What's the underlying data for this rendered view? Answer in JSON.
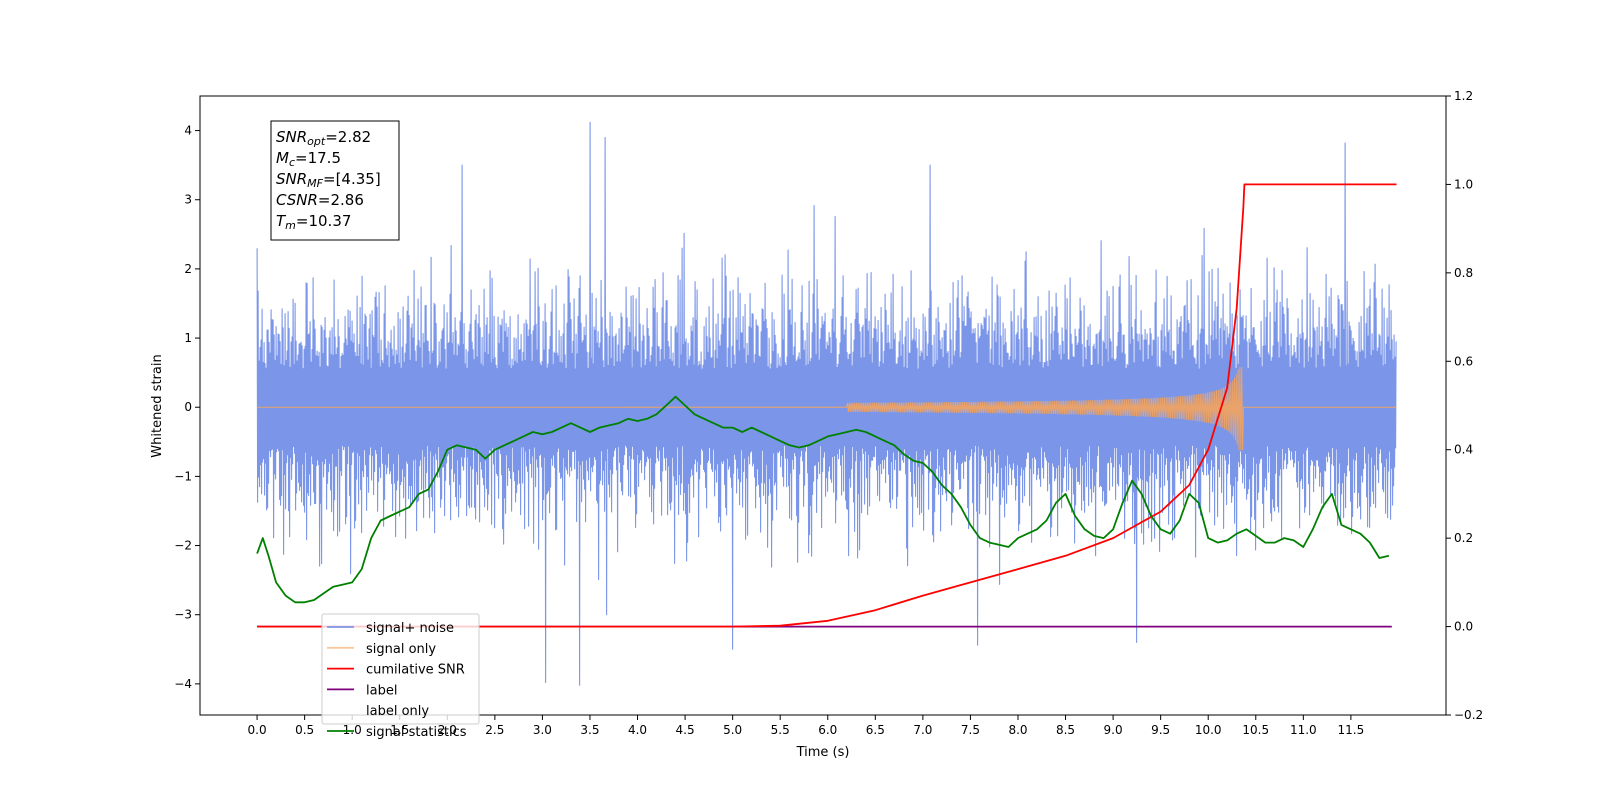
{
  "chart_data": {
    "type": "line",
    "title": "",
    "xlabel": "Time (s)",
    "ylabel": "Whitened strain",
    "y2label": "",
    "xlim": [
      -0.6,
      12.5
    ],
    "ylim": [
      -4.45,
      4.5
    ],
    "y2lim": [
      -0.2,
      1.2
    ],
    "grid": false,
    "legend_position": "lower-left",
    "x_ticks": [
      0.0,
      0.5,
      1.0,
      1.5,
      2.0,
      2.5,
      3.0,
      3.5,
      4.0,
      4.5,
      5.0,
      5.5,
      6.0,
      6.5,
      7.0,
      7.5,
      8.0,
      8.5,
      9.0,
      9.5,
      10.0,
      10.5,
      11.0,
      11.5
    ],
    "x_tick_labels": [
      "0.0",
      "0.5",
      "1.0",
      "1.5",
      "2.0",
      "2.5",
      "3.0",
      "3.5",
      "4.0",
      "4.5",
      "5.0",
      "5.5",
      "6.0",
      "6.5",
      "7.0",
      "7.5",
      "8.0",
      "8.5",
      "9.0",
      "9.5",
      "10.0",
      "10.5",
      "11.0",
      "11.5"
    ],
    "y_ticks": [
      4,
      3,
      2,
      1,
      0,
      -1,
      -2,
      -3,
      -4
    ],
    "y_tick_labels": [
      "4",
      "3",
      "2",
      "1",
      "0",
      "−1",
      "−2",
      "−3",
      "−4"
    ],
    "y2_ticks": [
      1.2,
      1.0,
      0.8,
      0.6,
      0.4,
      0.2,
      0.0,
      -0.2
    ],
    "y2_tick_labels": [
      "1.2",
      "1.0",
      "0.8",
      "0.6",
      "0.4",
      "0.2",
      "0.0",
      "−0.2"
    ],
    "stats_box": [
      {
        "base": "SNR",
        "sub": "opt",
        "value": "=2.82"
      },
      {
        "base": "M",
        "sub": "c",
        "value": "=17.5"
      },
      {
        "base": "SNR",
        "sub": "MF",
        "value": "=[4.35]"
      },
      {
        "base": "CSNR",
        "sub": "",
        "value": "=2.86"
      },
      {
        "base": "T",
        "sub": "m",
        "value": "=10.37"
      }
    ],
    "series": [
      {
        "name": "signal+ noise",
        "axis": "left",
        "color": "#7b96e8",
        "render": "noise-band",
        "x_range": [
          0.0,
          11.98
        ],
        "mean": 0.0,
        "typical_range": [
          -2.0,
          2.0
        ],
        "peak_values": [
          {
            "x": 3.5,
            "y": 4.12
          },
          {
            "x": 3.66,
            "y": 3.9
          },
          {
            "x": 11.44,
            "y": 3.82
          },
          {
            "x": 2.15,
            "y": 3.5
          },
          {
            "x": 7.08,
            "y": 3.5
          },
          {
            "x": 3.04,
            "y": -3.98
          },
          {
            "x": 3.4,
            "y": -4.02
          },
          {
            "x": 5.0,
            "y": -3.5
          },
          {
            "x": 7.58,
            "y": -3.44
          },
          {
            "x": 9.25,
            "y": -3.4
          },
          {
            "x": 0.0,
            "y": 2.3
          },
          {
            "x": 11.98,
            "y": 3.2
          }
        ]
      },
      {
        "name": "signal only",
        "axis": "left",
        "color": "#f5a35c",
        "render": "chirp",
        "x_range": [
          0.0,
          11.98
        ],
        "merger_time": 10.37,
        "peak_amplitude": [
          0.58,
          -0.62
        ]
      },
      {
        "name": "cumilative SNR",
        "axis": "right",
        "color": "#ff0000",
        "x": [
          0.0,
          5.0,
          5.5,
          6.0,
          6.5,
          7.0,
          7.5,
          8.0,
          8.5,
          9.0,
          9.5,
          9.8,
          10.0,
          10.2,
          10.3,
          10.37,
          10.38,
          11.98
        ],
        "values": [
          0.0,
          0.0,
          0.002,
          0.013,
          0.037,
          0.07,
          0.1,
          0.13,
          0.16,
          0.2,
          0.26,
          0.32,
          0.4,
          0.54,
          0.72,
          0.95,
          1.0,
          1.0
        ]
      },
      {
        "name": "label",
        "axis": "right",
        "color": "#800080",
        "x": [
          0.0,
          11.93
        ],
        "values": [
          0.0,
          0.0
        ]
      },
      {
        "name": "label only",
        "axis": "right",
        "color": "#cccccc",
        "x": [],
        "values": []
      },
      {
        "name": "signal statistics",
        "axis": "right",
        "color": "#008000",
        "x": [
          0.0,
          0.06,
          0.12,
          0.2,
          0.3,
          0.4,
          0.5,
          0.6,
          0.7,
          0.8,
          0.9,
          1.0,
          1.1,
          1.2,
          1.3,
          1.4,
          1.5,
          1.6,
          1.7,
          1.8,
          1.9,
          2.0,
          2.1,
          2.2,
          2.3,
          2.4,
          2.5,
          2.6,
          2.7,
          2.8,
          2.9,
          3.0,
          3.1,
          3.2,
          3.3,
          3.4,
          3.5,
          3.6,
          3.7,
          3.8,
          3.9,
          4.0,
          4.1,
          4.2,
          4.3,
          4.4,
          4.5,
          4.6,
          4.7,
          4.8,
          4.9,
          5.0,
          5.1,
          5.2,
          5.3,
          5.4,
          5.5,
          5.6,
          5.7,
          5.8,
          5.9,
          6.0,
          6.1,
          6.2,
          6.3,
          6.4,
          6.5,
          6.6,
          6.7,
          6.8,
          6.9,
          7.0,
          7.1,
          7.2,
          7.3,
          7.4,
          7.5,
          7.6,
          7.7,
          7.8,
          7.9,
          8.0,
          8.1,
          8.2,
          8.3,
          8.4,
          8.5,
          8.6,
          8.7,
          8.8,
          8.9,
          9.0,
          9.1,
          9.2,
          9.3,
          9.4,
          9.5,
          9.6,
          9.7,
          9.8,
          9.9,
          10.0,
          10.1,
          10.2,
          10.3,
          10.4,
          10.5,
          10.6,
          10.7,
          10.8,
          10.9,
          11.0,
          11.1,
          11.2,
          11.3,
          11.4,
          11.5,
          11.6,
          11.7,
          11.8,
          11.9
        ],
        "values": [
          0.165,
          0.2,
          0.16,
          0.1,
          0.07,
          0.055,
          0.055,
          0.06,
          0.075,
          0.09,
          0.095,
          0.1,
          0.13,
          0.2,
          0.24,
          0.25,
          0.26,
          0.27,
          0.3,
          0.31,
          0.35,
          0.4,
          0.41,
          0.405,
          0.4,
          0.38,
          0.4,
          0.41,
          0.42,
          0.43,
          0.44,
          0.435,
          0.44,
          0.45,
          0.46,
          0.45,
          0.44,
          0.45,
          0.455,
          0.46,
          0.47,
          0.465,
          0.47,
          0.48,
          0.5,
          0.52,
          0.5,
          0.48,
          0.47,
          0.46,
          0.45,
          0.45,
          0.44,
          0.45,
          0.44,
          0.43,
          0.42,
          0.41,
          0.405,
          0.41,
          0.42,
          0.43,
          0.435,
          0.44,
          0.445,
          0.44,
          0.43,
          0.42,
          0.41,
          0.39,
          0.375,
          0.37,
          0.35,
          0.32,
          0.3,
          0.27,
          0.23,
          0.2,
          0.19,
          0.185,
          0.18,
          0.2,
          0.21,
          0.22,
          0.24,
          0.28,
          0.3,
          0.25,
          0.22,
          0.205,
          0.2,
          0.22,
          0.28,
          0.33,
          0.3,
          0.25,
          0.22,
          0.21,
          0.24,
          0.3,
          0.28,
          0.2,
          0.19,
          0.195,
          0.21,
          0.22,
          0.205,
          0.19,
          0.19,
          0.2,
          0.195,
          0.18,
          0.22,
          0.27,
          0.3,
          0.23,
          0.22,
          0.21,
          0.19,
          0.155,
          0.16
        ]
      }
    ]
  }
}
